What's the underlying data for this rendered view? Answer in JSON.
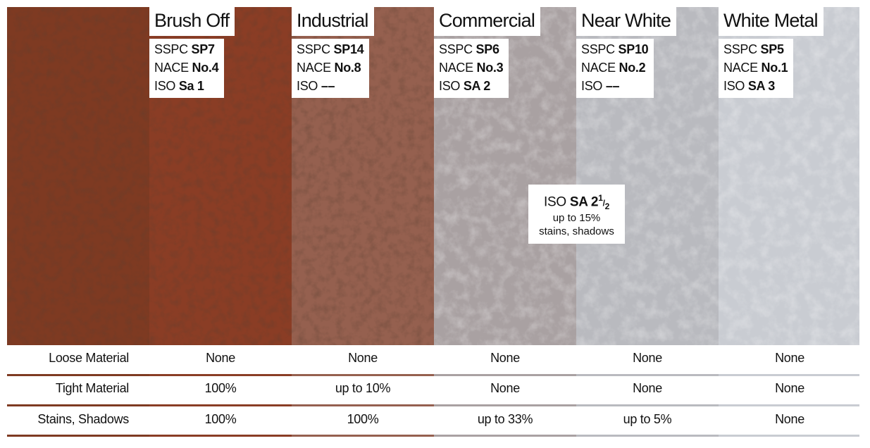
{
  "standard_labels": [
    "SSPC",
    "NACE",
    "ISO"
  ],
  "columns": [
    {
      "title": "Brush Off",
      "codes": [
        "SP7",
        "No.4",
        "Sa 1"
      ]
    },
    {
      "title": "Industrial",
      "codes": [
        "SP14",
        "No.8",
        "––"
      ]
    },
    {
      "title": "Commercial",
      "codes": [
        "SP6",
        "No.3",
        "SA 2"
      ]
    },
    {
      "title": "Near White",
      "codes": [
        "SP10",
        "No.2",
        "––"
      ]
    },
    {
      "title": "White Metal",
      "codes": [
        "SP5",
        "No.1",
        "SA 3"
      ]
    }
  ],
  "callout": {
    "prefix": "ISO",
    "grade": "SA 2",
    "fraction_top": "1",
    "fraction_bottom": "2",
    "lines": [
      "up to 15%",
      "stains, shadows"
    ]
  },
  "table": {
    "rows": [
      {
        "label": "Loose Material",
        "values": [
          "None",
          "None",
          "None",
          "None",
          "None"
        ]
      },
      {
        "label": "Tight Material",
        "values": [
          "100%",
          "up to 10%",
          "None",
          "None",
          "None"
        ]
      },
      {
        "label": "Stains, Shadows",
        "values": [
          "100%",
          "100%",
          "up to 33%",
          "up to 5%",
          "None"
        ]
      }
    ]
  }
}
